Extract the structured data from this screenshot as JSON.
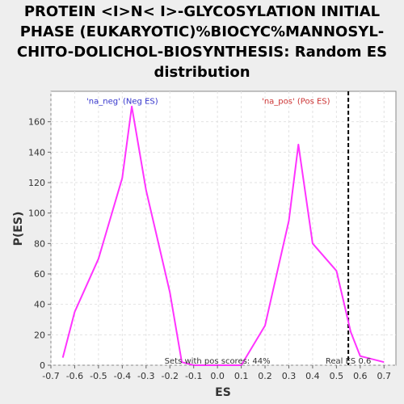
{
  "chart_data": {
    "type": "line",
    "title": "PROTEIN <I>N< I>-GLYCOSYLATION INITIAL PHASE (EUKARYOTIC)%BIOCYC%MANNOSYL-CHITO-DOLICHOL-BIOSYNTHESIS: Random ES distribution",
    "title_lines": [
      "PROTEIN <I>N< I>-GLYCOSYLATION INITIAL",
      "PHASE (EUKARYOTIC)%BIOCYC%MANNOSYL-",
      "CHITO-DOLICHOL-BIOSYNTHESIS: Random ES",
      "distribution"
    ],
    "xlabel": "ES",
    "ylabel": "P(ES)",
    "xlim": [
      -0.7,
      0.75
    ],
    "ylim": [
      0,
      180
    ],
    "xticks": [
      -0.7,
      -0.6,
      -0.5,
      -0.4,
      -0.3,
      -0.2,
      -0.1,
      0.0,
      0.1,
      0.2,
      0.3,
      0.4,
      0.5,
      0.6,
      0.7
    ],
    "xtick_labels": [
      "-0.7",
      "-0.6",
      "-0.5",
      "-0.4",
      "-0.3",
      "-0.2",
      "-0.1",
      "0.0",
      "0.1",
      "0.2",
      "0.3",
      "0.4",
      "0.5",
      "0.6",
      "0.7"
    ],
    "yticks": [
      0,
      20,
      40,
      60,
      80,
      100,
      120,
      140,
      160
    ],
    "ytick_labels": [
      "0",
      "20",
      "40",
      "60",
      "80",
      "100",
      "120",
      "140",
      "160"
    ],
    "grid": true,
    "series": [
      {
        "color": "#ff33ff",
        "x": [
          -0.65,
          -0.6,
          -0.5,
          -0.4,
          -0.36,
          -0.3,
          -0.2,
          -0.15,
          -0.1,
          0.0,
          0.1,
          0.2,
          0.3,
          0.34,
          0.4,
          0.5,
          0.56,
          0.6,
          0.7
        ],
        "y": [
          5,
          35,
          70,
          123,
          170,
          115,
          48,
          2,
          0,
          0,
          0,
          26,
          95,
          145,
          80,
          62,
          22,
          6,
          2
        ]
      }
    ],
    "vline": {
      "x": 0.55,
      "color": "#000000",
      "style": "dashed"
    },
    "annotations": [
      {
        "text": "'na_neg' (Neg ES)",
        "color": "#3333cc",
        "x": -0.4,
        "y": 174
      },
      {
        "text": "'na_pos' (Pos ES)",
        "color": "#cc3333",
        "x": 0.33,
        "y": 174
      },
      {
        "text": "Sets with pos scores: 44%",
        "color": "#333333",
        "x": 0.0,
        "y": 0
      },
      {
        "text": "Real ES 0.6",
        "color": "#333333",
        "x": 0.55,
        "y": 0
      }
    ]
  }
}
